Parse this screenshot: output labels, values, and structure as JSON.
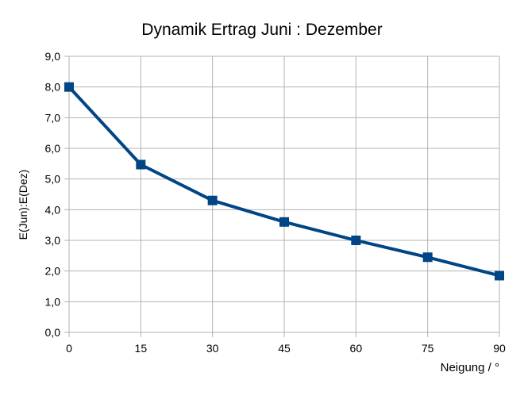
{
  "chart_data": {
    "type": "line",
    "title": "Dynamik Ertrag Juni : Dezember",
    "xlabel": "Neigung / °",
    "ylabel": "E(Jun):E(Dez)",
    "x": [
      0,
      15,
      30,
      45,
      60,
      75,
      90
    ],
    "x_tick_labels": [
      "0",
      "15",
      "30",
      "45",
      "60",
      "75",
      "90"
    ],
    "xlim": [
      0,
      90
    ],
    "y_tick_labels": [
      "0,0",
      "1,0",
      "2,0",
      "3,0",
      "4,0",
      "5,0",
      "6,0",
      "7,0",
      "8,0",
      "9,0"
    ],
    "ylim": [
      0,
      9
    ],
    "series": [
      {
        "values": [
          8.0,
          5.47,
          4.3,
          3.6,
          3.0,
          2.45,
          1.85
        ],
        "color": "#004586",
        "marker": "square"
      }
    ],
    "grid": true,
    "legend": "none"
  }
}
